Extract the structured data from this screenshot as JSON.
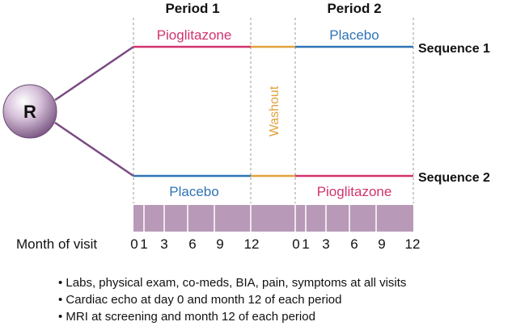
{
  "header": {
    "period1": "Period 1",
    "period2": "Period 2"
  },
  "randomization": {
    "label": "R"
  },
  "washout": {
    "label": "Washout"
  },
  "sequence1": {
    "label": "Sequence 1",
    "period1_drug": "Pioglitazone",
    "period2_drug": "Placebo"
  },
  "sequence2": {
    "label": "Sequence 2",
    "period1_drug": "Placebo",
    "period2_drug": "Pioglitazone"
  },
  "timeline": {
    "axis_label": "Month of visit",
    "period1_months": [
      "0",
      "1",
      "3",
      "6",
      "9",
      "12"
    ],
    "period2_months": [
      "0",
      "1",
      "3",
      "6",
      "9",
      "12"
    ]
  },
  "notes": [
    "Labs, physical exam, co-meds, BIA, pain, symptoms at all visits",
    "Cardiac echo at day 0 and month 12 of each period",
    "MRI at screening and month 12 of each period"
  ],
  "colors": {
    "pioglitazone": "#d1336e",
    "placebo": "#2f74b5",
    "washout": "#e0a23c",
    "randomization_line": "#7a4a82",
    "visit_bar": "#b89ab8"
  }
}
